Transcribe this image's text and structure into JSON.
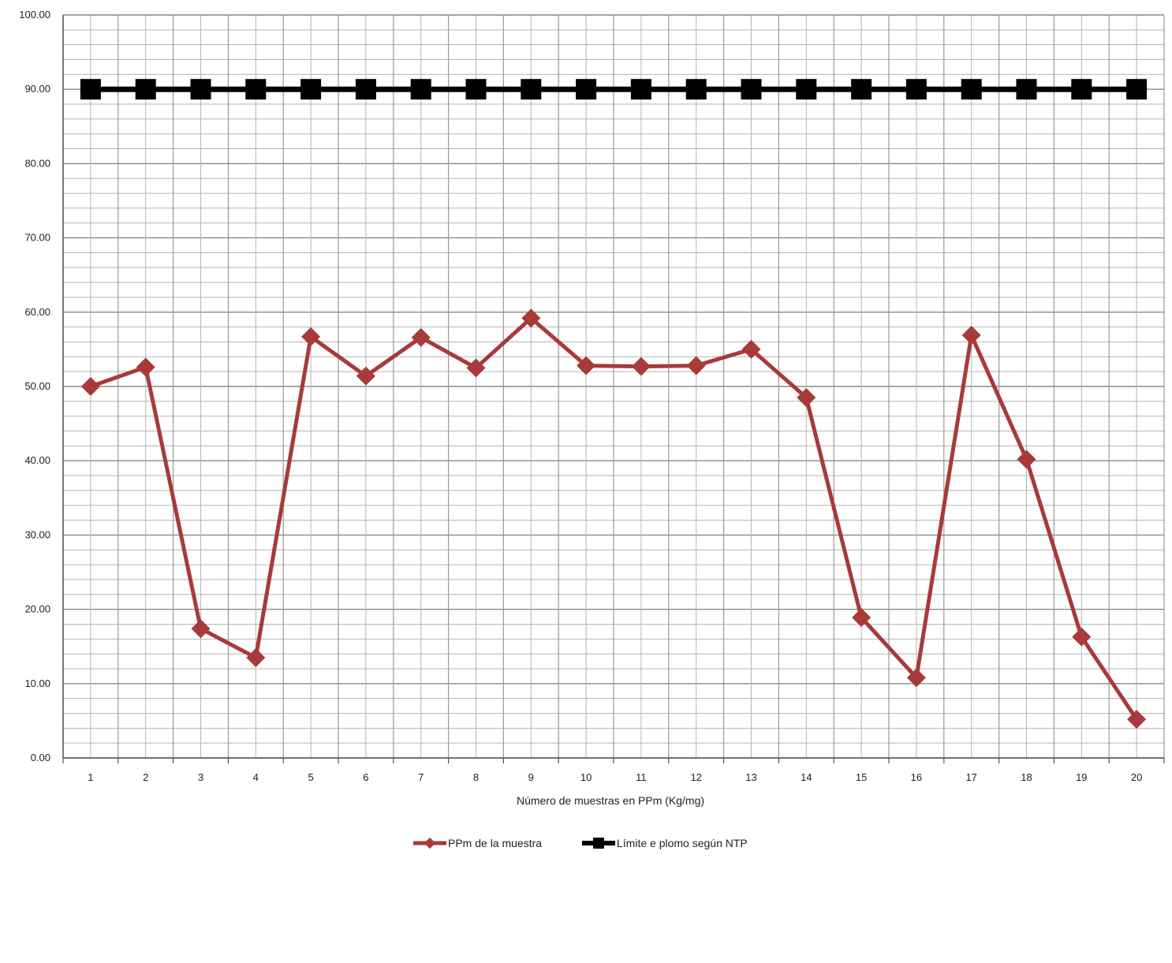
{
  "chart_data": {
    "type": "line",
    "title": "",
    "xlabel": "Número de muestras en PPm (Kg/mg)",
    "ylabel": "",
    "categories": [
      "1",
      "2",
      "3",
      "4",
      "5",
      "6",
      "7",
      "8",
      "9",
      "10",
      "11",
      "12",
      "13",
      "14",
      "15",
      "16",
      "17",
      "18",
      "19",
      "20"
    ],
    "y_ticks": [
      "0.00",
      "10.00",
      "20.00",
      "30.00",
      "40.00",
      "50.00",
      "60.00",
      "70.00",
      "80.00",
      "90.00",
      "100.00"
    ],
    "ylim": [
      0,
      100
    ],
    "grid": true,
    "legend_position": "bottom",
    "series": [
      {
        "name": "PPm de la muestra",
        "color": "#a83a3a",
        "marker": "diamond",
        "values": [
          50.0,
          52.6,
          17.4,
          13.5,
          56.7,
          51.4,
          56.6,
          52.5,
          59.2,
          52.8,
          52.7,
          52.8,
          55.0,
          48.5,
          18.9,
          10.8,
          56.9,
          40.2,
          16.3,
          5.2
        ]
      },
      {
        "name": "Límite e plomo según NTP",
        "color": "#000000",
        "marker": "square",
        "values": [
          90,
          90,
          90,
          90,
          90,
          90,
          90,
          90,
          90,
          90,
          90,
          90,
          90,
          90,
          90,
          90,
          90,
          90,
          90,
          90
        ]
      }
    ]
  }
}
